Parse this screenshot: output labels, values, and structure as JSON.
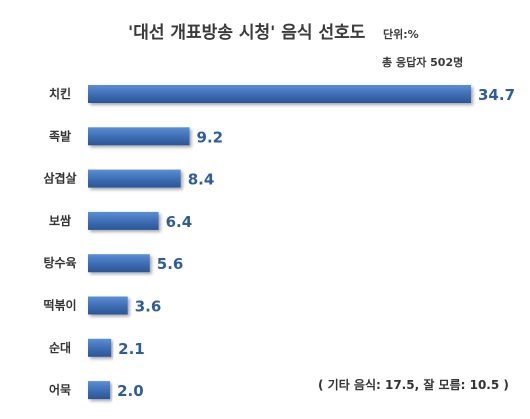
{
  "chart_data": {
    "type": "bar",
    "orientation": "horizontal",
    "title": "'대선 개표방송 시청' 음식 선호도",
    "unit": "단위:%",
    "respondents": "총 응답자 502명",
    "categories": [
      "치킨",
      "족발",
      "삼겹살",
      "보쌈",
      "탕수육",
      "떡볶이",
      "순대",
      "어묵"
    ],
    "values": [
      34.7,
      9.2,
      8.4,
      6.4,
      5.6,
      3.6,
      2.1,
      2.0
    ],
    "value_labels": [
      "34.7",
      "9.2",
      "8.4",
      "6.4",
      "5.6",
      "3.6",
      "2.1",
      "2.0"
    ],
    "xlim": [
      0,
      34.7
    ],
    "grid": false,
    "legend": "none",
    "bar_color": "#3f6fb5",
    "value_label_color": "#2f5d9a",
    "footnote": "( 기타 음식: 17.5, 잘 모름: 10.5 )"
  }
}
